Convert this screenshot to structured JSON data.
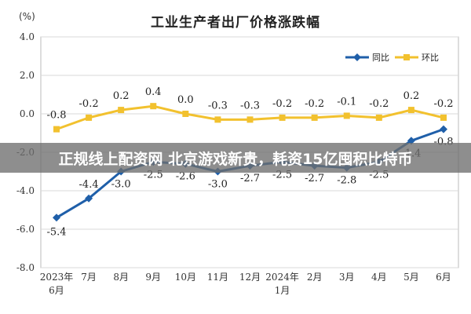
{
  "banner_text": "正规线上配资网 北京游戏新贵，耗资15亿囤积比特币",
  "colors": {
    "yoy": "#1f5fa9",
    "mom": "#f2c12e",
    "grid": "#d9d9d9",
    "axis": "#333333"
  },
  "chart_data": {
    "type": "line",
    "title": "工业生产者出厂价格涨跌幅",
    "unit_label": "(%)",
    "categories": [
      "2023年\n6月",
      "7月",
      "8月",
      "9月",
      "10月",
      "11月",
      "12月",
      "2024年\n1月",
      "2月",
      "3月",
      "4月",
      "5月",
      "6月"
    ],
    "series": [
      {
        "name": "同比",
        "values": [
          -5.4,
          -4.4,
          -3.0,
          -2.5,
          -2.6,
          -3.0,
          -2.7,
          -2.5,
          -2.7,
          -2.8,
          -2.5,
          -1.4,
          -0.8
        ],
        "labels": [
          "-5.4",
          "-4.4",
          "-3.0",
          "-2.5",
          "-2.6",
          "-3.0",
          "-2.7",
          "-2.5",
          "-2.7",
          "-2.8",
          "-2.5",
          "-1.4",
          "-0.8"
        ]
      },
      {
        "name": "环比",
        "values": [
          -0.8,
          -0.2,
          0.2,
          0.4,
          0.0,
          -0.3,
          -0.3,
          -0.2,
          -0.2,
          -0.1,
          -0.2,
          0.2,
          -0.2
        ],
        "labels": [
          "-0.8",
          "-0.2",
          "0.2",
          "0.4",
          "0.0",
          "-0.3",
          "-0.3",
          "-0.2",
          "-0.2",
          "-0.1",
          "-0.2",
          "0.2",
          "-0.2"
        ]
      }
    ],
    "yticks": [
      "4.0",
      "2.0",
      "0.0",
      "-2.0",
      "-4.0",
      "-6.0",
      "-8.0"
    ],
    "ylim": [
      -8,
      4
    ],
    "grid": true,
    "legend": "top-right"
  }
}
